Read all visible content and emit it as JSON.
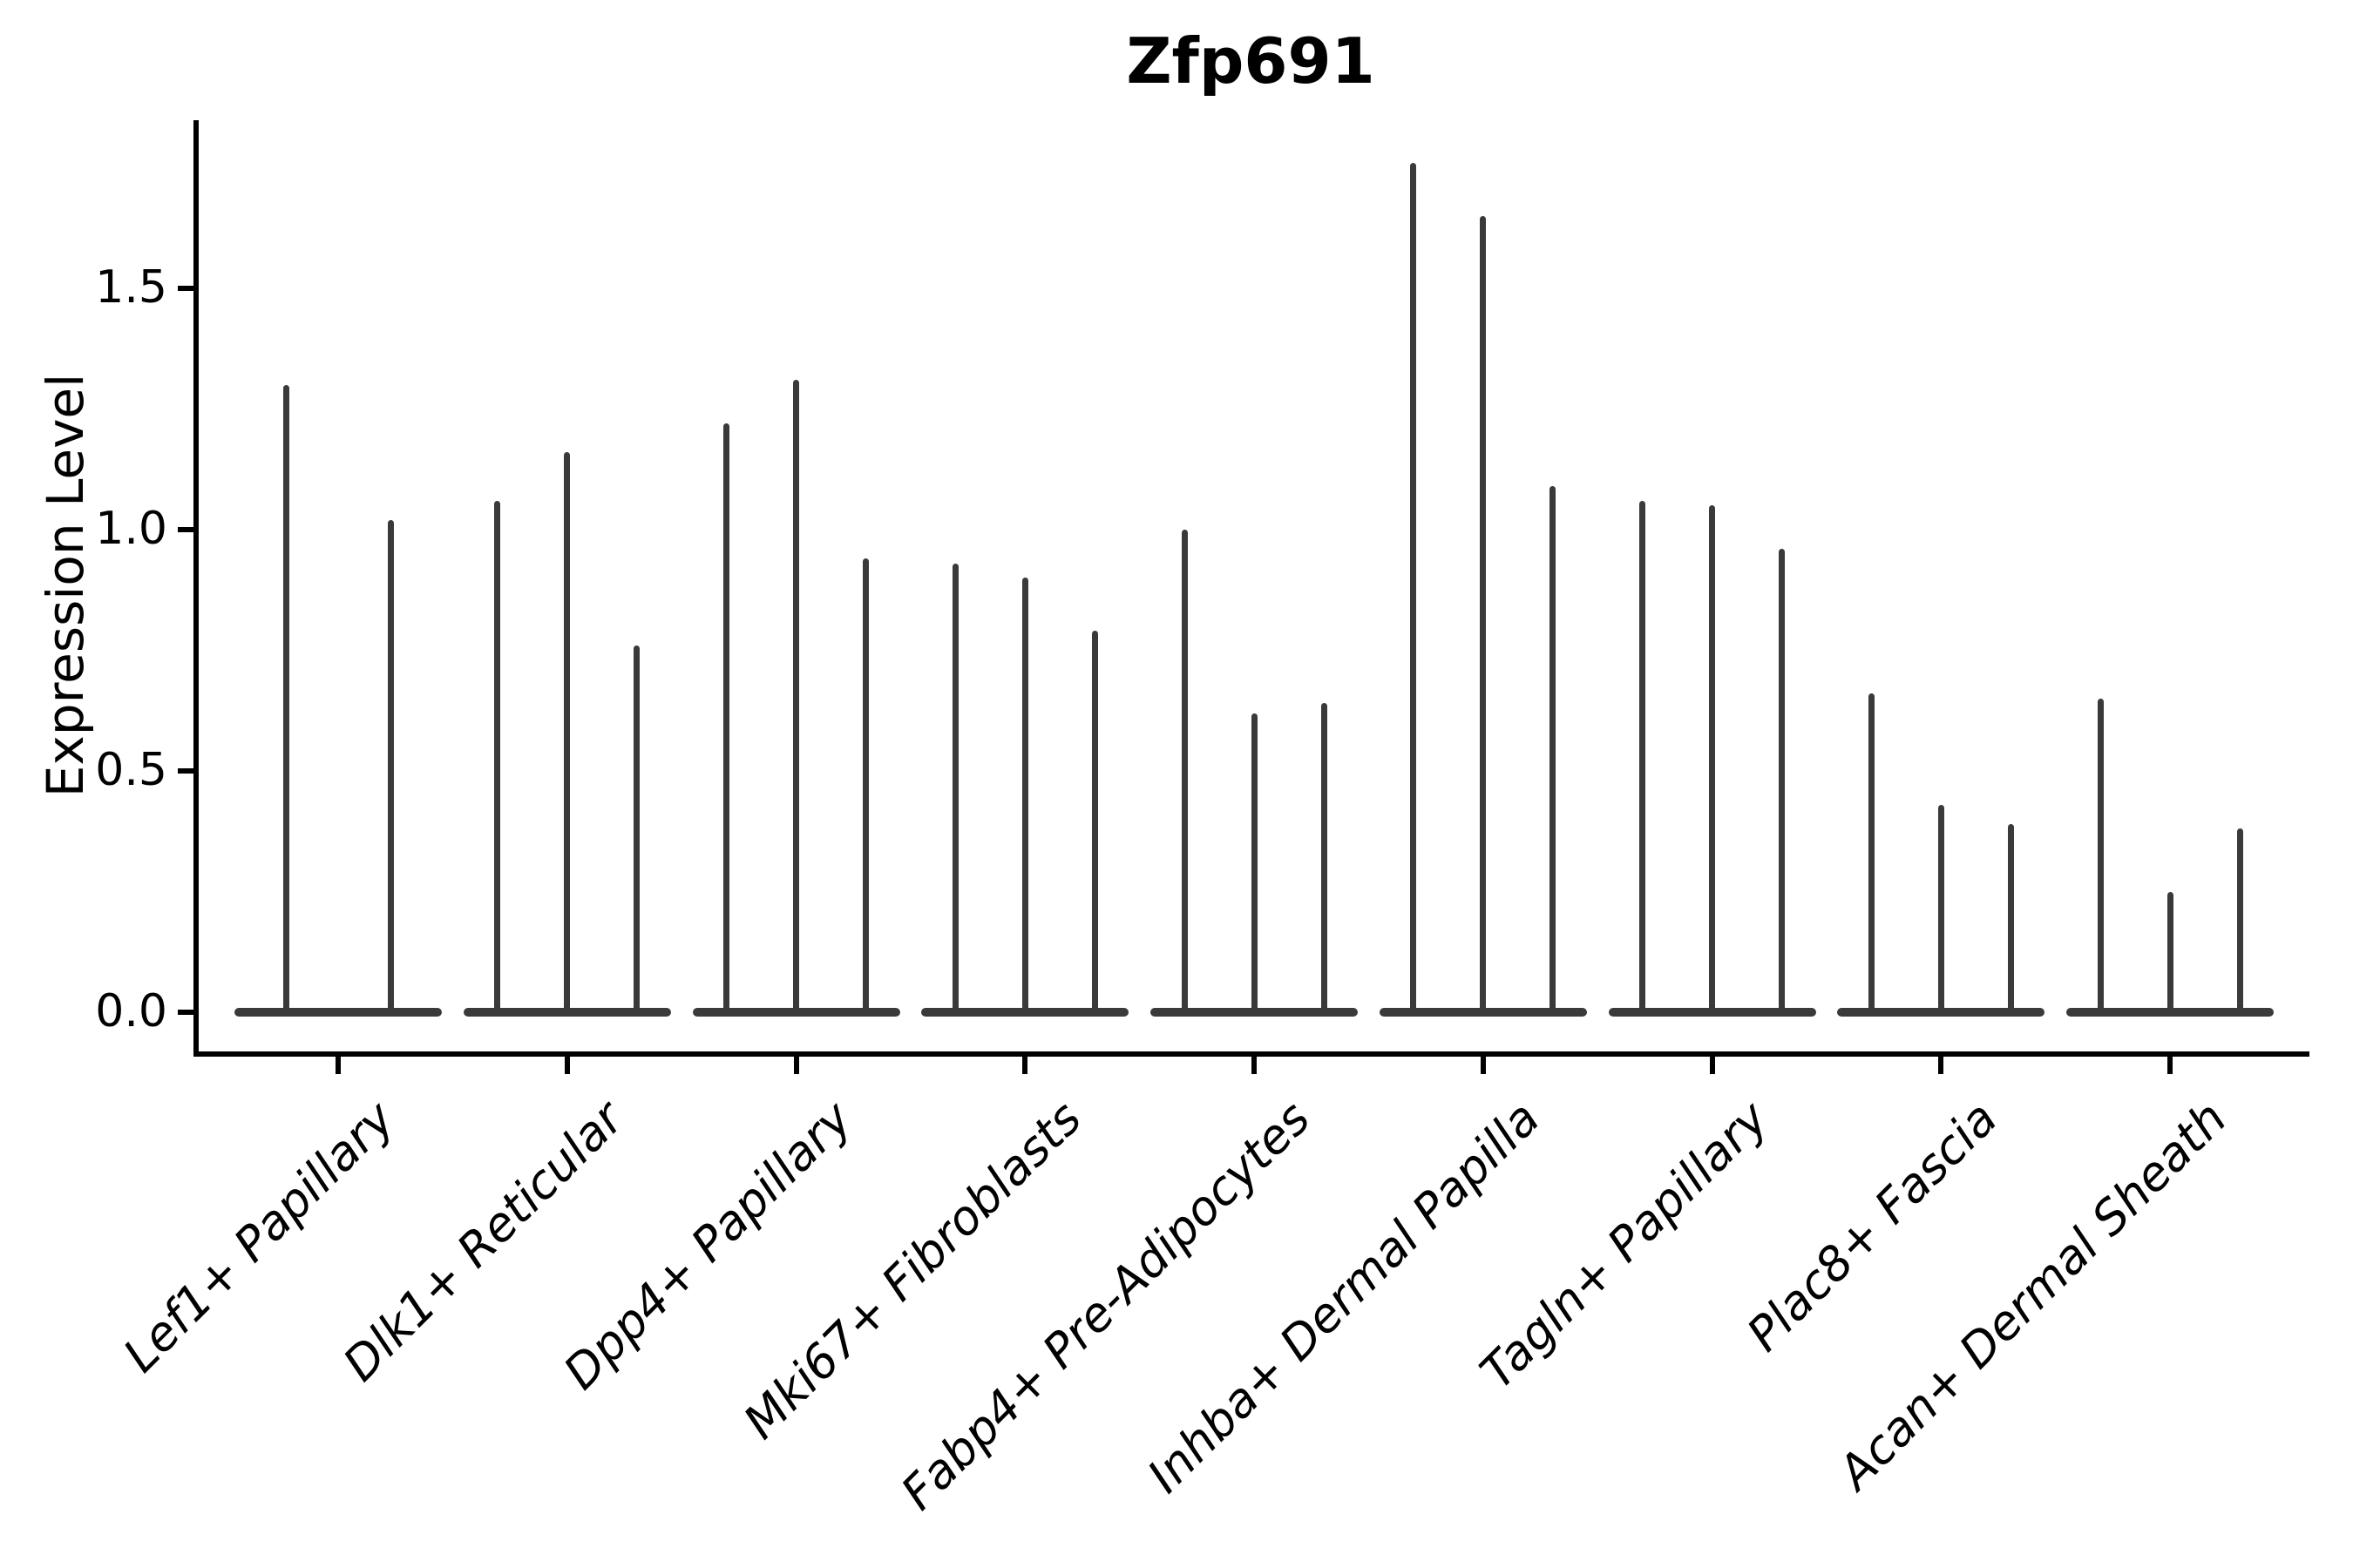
{
  "chart_data": {
    "type": "violin",
    "title": "Zfp691",
    "ylabel": "Expression Level",
    "xlabel": "",
    "ytick_labels": [
      "0.0",
      "0.5",
      "1.0",
      "1.5"
    ],
    "yticks": [
      0.0,
      0.5,
      1.0,
      1.5
    ],
    "ylim": [
      -0.09,
      1.84
    ],
    "grid": false,
    "legend": "none",
    "violin_color": "#3a3a3a",
    "axis_color": "#000000",
    "categories": [
      "Lef1+ Papillary",
      "Dlk1+ Reticular",
      "Dpp4+ Papillary",
      "Mki67+ Fibroblasts",
      "Fabp4+ Pre-Adipocytes",
      "Inhba+ Dermal Papilla",
      "Tagln+ Papillary",
      "Plac8+ Fascia",
      "Acan+ Dermal Sheath"
    ],
    "groups": [
      {
        "category": "Lef1+ Papillary",
        "violin_maxima": [
          1.3,
          1.02
        ]
      },
      {
        "category": "Dlk1+ Reticular",
        "violin_maxima": [
          1.06,
          1.16,
          0.76
        ]
      },
      {
        "category": "Dpp4+ Papillary",
        "violin_maxima": [
          1.22,
          1.31,
          0.94
        ]
      },
      {
        "category": "Mki67+ Fibroblasts",
        "violin_maxima": [
          0.93,
          0.9,
          0.79
        ]
      },
      {
        "category": "Fabp4+ Pre-Adipocytes",
        "violin_maxima": [
          1.0,
          0.62,
          0.64
        ]
      },
      {
        "category": "Inhba+ Dermal Papilla",
        "violin_maxima": [
          1.76,
          1.65,
          1.09
        ]
      },
      {
        "category": "Tagln+ Papillary",
        "violin_maxima": [
          1.06,
          1.05,
          0.96
        ]
      },
      {
        "category": "Plac8+ Fascia",
        "violin_maxima": [
          0.66,
          0.43,
          0.39
        ]
      },
      {
        "category": "Acan+ Dermal Sheath",
        "violin_maxima": [
          0.65,
          0.25,
          0.38
        ]
      }
    ]
  }
}
